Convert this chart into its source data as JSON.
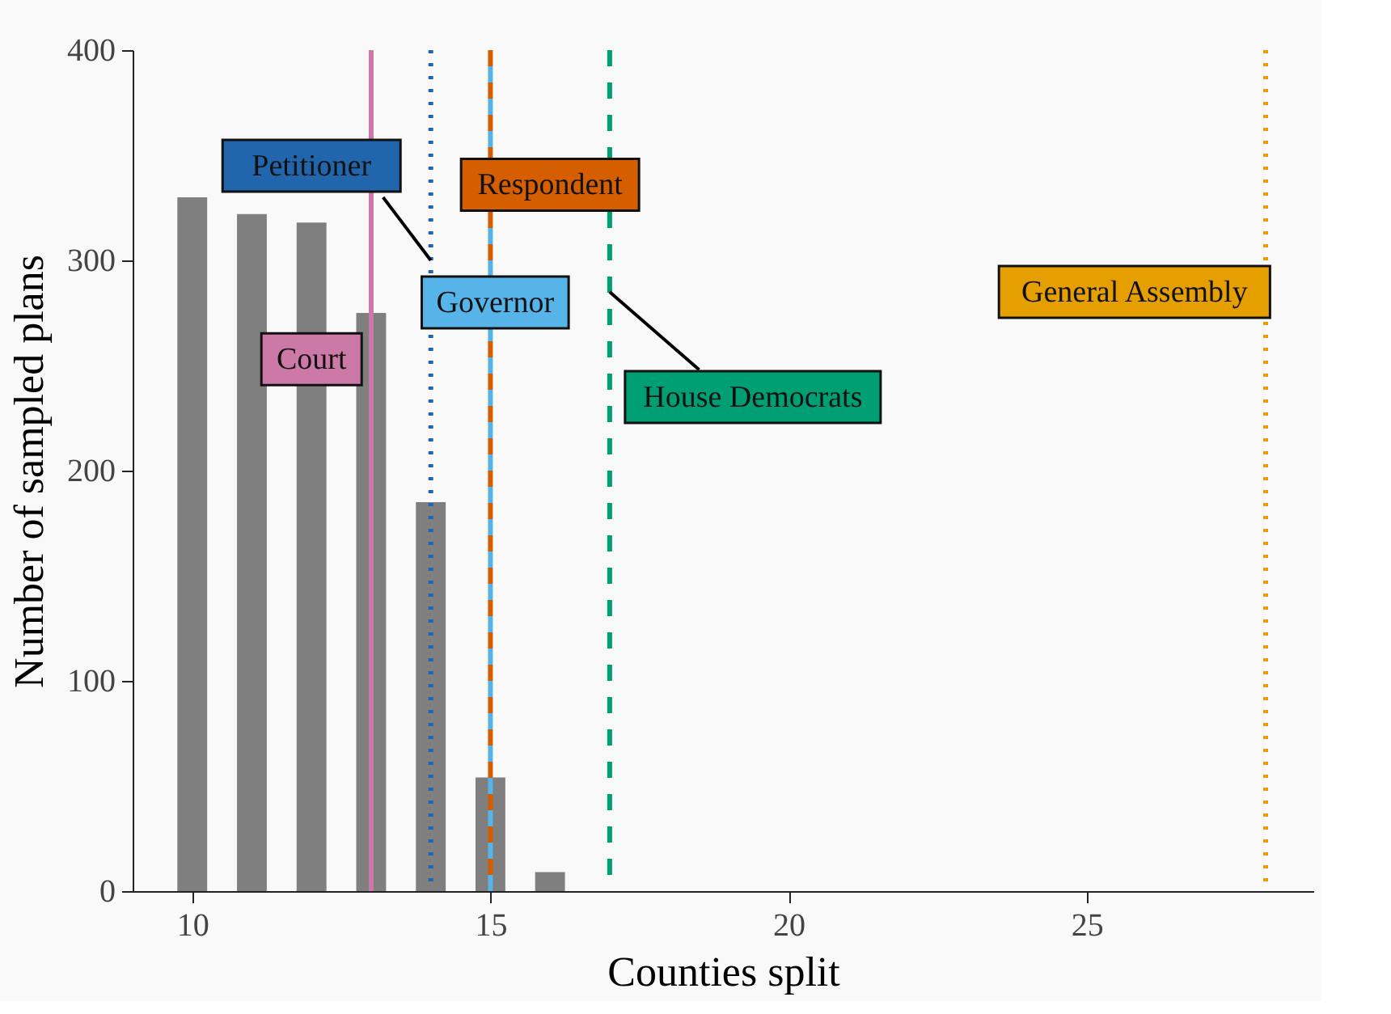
{
  "chart_data": {
    "type": "bar",
    "xlabel": "Counties split",
    "ylabel": "Number of sampled plans",
    "x": [
      10,
      11,
      12,
      13,
      14,
      15,
      16
    ],
    "values": [
      330,
      322,
      318,
      275,
      185,
      54,
      9
    ],
    "color": "#7f7f7f",
    "xlim": [
      9,
      28.8
    ],
    "xticks": [
      10,
      15,
      20,
      25
    ],
    "ylim": [
      0,
      400
    ],
    "yticks": [
      0,
      100,
      200,
      300,
      400
    ],
    "grid": false,
    "ref_lines": [
      {
        "axis": "x",
        "value": 13,
        "label": "Court",
        "color": "#cc79a7",
        "line_style": "solid"
      },
      {
        "axis": "x",
        "value": 14,
        "label": "Petitioner",
        "color": "#2166ac",
        "line_style": "dotted"
      },
      {
        "axis": "x",
        "value": 15,
        "label": "Respondent",
        "color": "#d55e00",
        "line_style": "dashed"
      },
      {
        "axis": "x",
        "value": 15,
        "label": "Governor",
        "color": "#56b4e9",
        "line_style": "dashed"
      },
      {
        "axis": "x",
        "value": 17,
        "label": "House Democrats",
        "color": "#009e73",
        "line_style": "dashed"
      },
      {
        "axis": "x",
        "value": 28,
        "label": "General Assembly",
        "color": "#e69f00",
        "line_style": "dotted"
      }
    ]
  }
}
